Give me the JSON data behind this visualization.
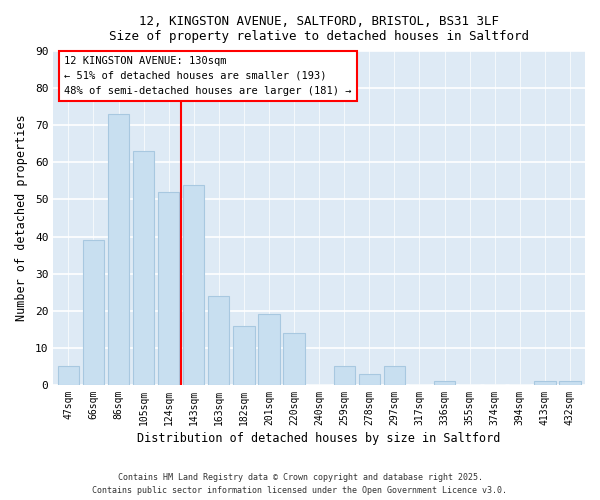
{
  "title_line1": "12, KINGSTON AVENUE, SALTFORD, BRISTOL, BS31 3LF",
  "title_line2": "Size of property relative to detached houses in Saltford",
  "xlabel": "Distribution of detached houses by size in Saltford",
  "ylabel": "Number of detached properties",
  "bar_labels": [
    "47sqm",
    "66sqm",
    "86sqm",
    "105sqm",
    "124sqm",
    "143sqm",
    "163sqm",
    "182sqm",
    "201sqm",
    "220sqm",
    "240sqm",
    "259sqm",
    "278sqm",
    "297sqm",
    "317sqm",
    "336sqm",
    "355sqm",
    "374sqm",
    "394sqm",
    "413sqm",
    "432sqm"
  ],
  "bar_values": [
    5,
    39,
    73,
    63,
    52,
    54,
    24,
    16,
    19,
    14,
    0,
    5,
    3,
    5,
    0,
    1,
    0,
    0,
    0,
    1,
    1
  ],
  "bar_color": "#c8dff0",
  "bar_edge_color": "#a8c8e0",
  "vline_x": 4.5,
  "vline_color": "red",
  "ylim": [
    0,
    90
  ],
  "yticks": [
    0,
    10,
    20,
    30,
    40,
    50,
    60,
    70,
    80,
    90
  ],
  "annotation_title": "12 KINGSTON AVENUE: 130sqm",
  "annotation_line2": "← 51% of detached houses are smaller (193)",
  "annotation_line3": "48% of semi-detached houses are larger (181) →",
  "footer_line1": "Contains HM Land Registry data © Crown copyright and database right 2025.",
  "footer_line2": "Contains public sector information licensed under the Open Government Licence v3.0.",
  "plot_bg_color": "#deeaf5"
}
